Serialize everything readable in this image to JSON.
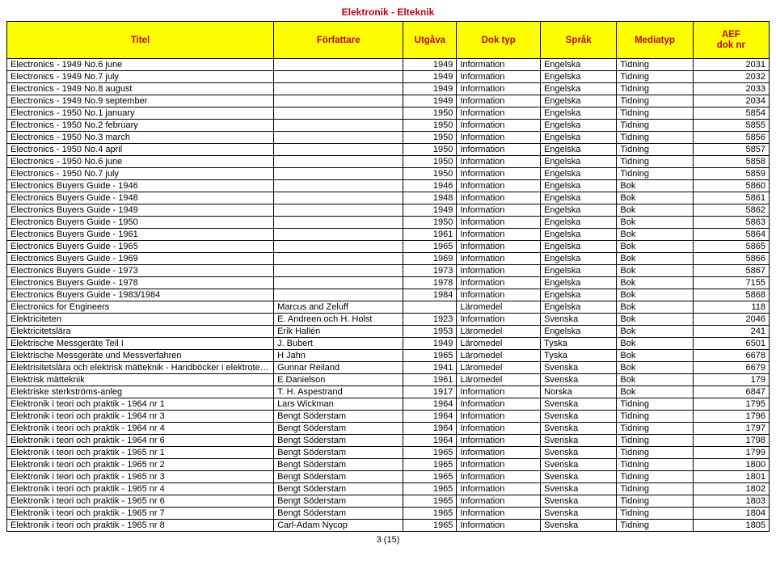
{
  "page": {
    "title": "Elektronik - Elteknik",
    "pager": "3 (15)"
  },
  "columns": [
    {
      "label": "Titel",
      "width": "35%",
      "align": "left"
    },
    {
      "label": "Författare",
      "width": "17%",
      "align": "left"
    },
    {
      "label": "Utgåva",
      "width": "7%",
      "align": "right"
    },
    {
      "label": "Dok typ",
      "width": "11%",
      "align": "left"
    },
    {
      "label": "Språk",
      "width": "10%",
      "align": "left"
    },
    {
      "label": "Mediatyp",
      "width": "10%",
      "align": "left"
    },
    {
      "label": "AEF\ndok nr",
      "width": "10%",
      "align": "right"
    }
  ],
  "rows": [
    [
      "Electronics - 1949 No.6 june",
      "",
      "1949",
      "Information",
      "Engelska",
      "Tidning",
      "2031"
    ],
    [
      "Electronics - 1949 No.7 july",
      "",
      "1949",
      "Information",
      "Engelska",
      "Tidning",
      "2032"
    ],
    [
      "Electronics - 1949 No.8 august",
      "",
      "1949",
      "Information",
      "Engelska",
      "Tidning",
      "2033"
    ],
    [
      "Electronics - 1949 No.9 september",
      "",
      "1949",
      "Information",
      "Engelska",
      "Tidning",
      "2034"
    ],
    [
      "Electronics - 1950 No.1 january",
      "",
      "1950",
      "Information",
      "Engelska",
      "Tidning",
      "5854"
    ],
    [
      "Electronics - 1950 No.2 february",
      "",
      "1950",
      "Information",
      "Engelska",
      "Tidning",
      "5855"
    ],
    [
      "Electronics - 1950 No.3 march",
      "",
      "1950",
      "Information",
      "Engelska",
      "Tidning",
      "5856"
    ],
    [
      "Electronics - 1950 No.4 april",
      "",
      "1950",
      "Information",
      "Engelska",
      "Tidning",
      "5857"
    ],
    [
      "Electronics - 1950 No.6 june",
      "",
      "1950",
      "Information",
      "Engelska",
      "Tidning",
      "5858"
    ],
    [
      "Electronics - 1950 No.7 july",
      "",
      "1950",
      "Information",
      "Engelska",
      "Tidning",
      "5859"
    ],
    [
      "Electronics Buyers Guide - 1946",
      "",
      "1946",
      "Information",
      "Engelska",
      "Bok",
      "5860"
    ],
    [
      "Electronics Buyers Guide - 1948",
      "",
      "1948",
      "Information",
      "Engelska",
      "Bok",
      "5861"
    ],
    [
      "Electronics Buyers Guide - 1949",
      "",
      "1949",
      "Information",
      "Engelska",
      "Bok",
      "5862"
    ],
    [
      "Electronics Buyers Guide - 1950",
      "",
      "1950",
      "Information",
      "Engelska",
      "Bok",
      "5863"
    ],
    [
      "Electronics Buyers Guide - 1961",
      "",
      "1961",
      "Information",
      "Engelska",
      "Bok",
      "5864"
    ],
    [
      "Electronics Buyers Guide - 1965",
      "",
      "1965",
      "Information",
      "Engelska",
      "Bok",
      "5865"
    ],
    [
      "Electronics Buyers Guide - 1969",
      "",
      "1969",
      "Information",
      "Engelska",
      "Bok",
      "5866"
    ],
    [
      "Electronics Buyers Guide - 1973",
      "",
      "1973",
      "Information",
      "Engelska",
      "Bok",
      "5867"
    ],
    [
      "Electronics Buyers Guide - 1978",
      "",
      "1978",
      "Information",
      "Engelska",
      "Bok",
      "7155"
    ],
    [
      "Electronics Buyers Guide - 1983/1984",
      "",
      "1984",
      "Information",
      "Engelska",
      "Bok",
      "5868"
    ],
    [
      "Electronics for Engineers",
      "Marcus and Zeluff",
      "",
      "Läromedel",
      "Engelska",
      "Bok",
      "118"
    ],
    [
      "Elektriciteten",
      "E. Andreen och H. Holst",
      "1923",
      "Information",
      "Svenska",
      "Bok",
      "2046"
    ],
    [
      "Elektricitetslära",
      "Erik Hallén",
      "1953",
      "Läromedel",
      "Engelska",
      "Bok",
      "241"
    ],
    [
      "Elektrische Messgeräte Teil I",
      "J. Bubert",
      "1949",
      "Läromedel",
      "Tyska",
      "Bok",
      "6501"
    ],
    [
      "Elektrische Messgeräte und Messverfahren",
      "H Jahn",
      "1965",
      "Läromedel",
      "Tyska",
      "Bok",
      "6678"
    ],
    [
      "Elektrisitetslära och elektrisk mätteknik - Handböcker i elektroteknik I",
      "Gunnar Reiland",
      "1941",
      "Läromedel",
      "Svenska",
      "Bok",
      "6679"
    ],
    [
      "Elektrisk mätteknik",
      "E Danielson",
      "1961",
      "Läromedel",
      "Svenska",
      "Bok",
      "179"
    ],
    [
      "Elektriske sterkströms-anleg",
      "T. H. Aspestrand",
      "1917",
      "Information",
      "Norska",
      "Bok",
      "6847"
    ],
    [
      "Elektronik i teori och praktik - 1964 nr 1",
      "Lars Wickman",
      "1964",
      "Information",
      "Svenska",
      "Tidning",
      "1795"
    ],
    [
      "Elektronik i teori och praktik - 1964 nr 3",
      "Bengt Söderstam",
      "1964",
      "Information",
      "Svenska",
      "Tidning",
      "1796"
    ],
    [
      "Elektronik i teori och praktik - 1964 nr 4",
      "Bengt Söderstam",
      "1964",
      "Information",
      "Svenska",
      "Tidning",
      "1797"
    ],
    [
      "Elektronik i teori och praktik - 1964 nr 6",
      "Bengt Söderstam",
      "1964",
      "Information",
      "Svenska",
      "Tidning",
      "1798"
    ],
    [
      "Elektronik i teori och praktik - 1965 nr 1",
      "Bengt Söderstam",
      "1965",
      "Information",
      "Svenska",
      "Tidning",
      "1799"
    ],
    [
      "Elektronik i teori och praktik - 1965 nr 2",
      "Bengt Söderstam",
      "1965",
      "Information",
      "Svenska",
      "Tidning",
      "1800"
    ],
    [
      "Elektronik i teori och praktik - 1965 nr 3",
      "Bengt Söderstam",
      "1965",
      "Information",
      "Svenska",
      "Tidning",
      "1801"
    ],
    [
      "Elektronik i teori och praktik - 1965 nr 4",
      "Bengt Söderstam",
      "1965",
      "Information",
      "Svenska",
      "Tidning",
      "1802"
    ],
    [
      "Elektronik i teori och praktik - 1965 nr 6",
      "Bengt Söderstam",
      "1965",
      "Information",
      "Svenska",
      "Tidning",
      "1803"
    ],
    [
      "Elektronik i teori och praktik - 1965 nr 7",
      "Bengt Söderstam",
      "1965",
      "Information",
      "Svenska",
      "Tidning",
      "1804"
    ],
    [
      "Elektronik i teori och praktik - 1965 nr 8",
      "Carl-Adam Nycop",
      "1965",
      "Information",
      "Svenska",
      "Tidning",
      "1805"
    ]
  ]
}
